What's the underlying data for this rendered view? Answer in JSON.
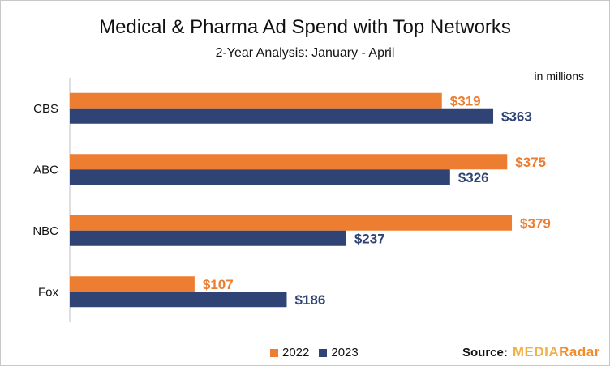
{
  "chart_data": {
    "type": "bar",
    "orientation": "horizontal",
    "title": "Medical & Pharma Ad Spend with Top Networks",
    "subtitle": "2-Year Analysis: January - April",
    "units_note": "in millions",
    "categories": [
      "CBS",
      "ABC",
      "NBC",
      "Fox"
    ],
    "series": [
      {
        "name": "2022",
        "values": [
          319,
          375,
          379,
          107
        ],
        "labels": [
          "$319",
          "$375",
          "$379",
          "$107"
        ],
        "color": "#ed7d31"
      },
      {
        "name": "2023",
        "values": [
          363,
          326,
          237,
          186
        ],
        "labels": [
          "$363",
          "$326",
          "$237",
          "$186"
        ],
        "color": "#2f4374"
      }
    ],
    "xlim": [
      0,
      420
    ],
    "grid": false,
    "legend_position": "bottom"
  },
  "source": {
    "label": "Source:",
    "brand_part1": "MEDIA",
    "brand_part2": "Radar"
  }
}
